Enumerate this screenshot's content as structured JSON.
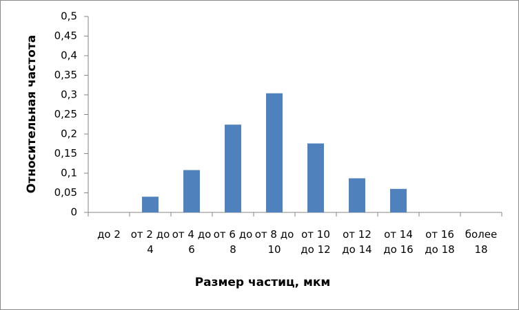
{
  "chart_data": {
    "type": "bar",
    "x_label": "Размер частиц, мкм",
    "y_label": "Относительная частота",
    "categories": [
      "до 2",
      "от 2 до 4",
      "от 4 до 6",
      "от 6 до 8",
      "от 8 до 10",
      "от 10 до 12",
      "от 12 до 14",
      "от 14 до 16",
      "от 16 до 18",
      "более 18"
    ],
    "values": [
      0,
      0.04,
      0.108,
      0.224,
      0.304,
      0.176,
      0.087,
      0.06,
      0,
      0
    ],
    "color": "#4f81bd",
    "ylim": [
      0,
      0.5
    ],
    "yticks": [
      0,
      {
        "value": 0.05,
        "label": "0,05"
      },
      {
        "value": 0.1,
        "label": "0,1"
      },
      {
        "value": 0.15,
        "label": "0,15"
      },
      {
        "value": 0.2,
        "label": "0,2"
      },
      {
        "value": 0.25,
        "label": "0,25"
      },
      {
        "value": 0.3,
        "label": "0,3"
      },
      {
        "value": 0.35,
        "label": "0,35"
      },
      {
        "value": 0.4,
        "label": "0,4"
      },
      {
        "value": 0.45,
        "label": "0,45"
      },
      {
        "value": 0.5,
        "label": "0,5"
      }
    ],
    "grid": false
  }
}
